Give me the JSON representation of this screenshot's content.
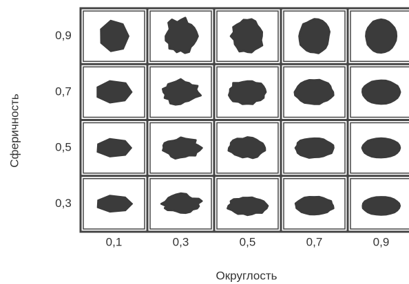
{
  "y_axis": {
    "label": "Сферичность",
    "ticks": [
      "0,9",
      "0,7",
      "0,5",
      "0,3"
    ]
  },
  "x_axis": {
    "label": "Округлость",
    "ticks": [
      "0,1",
      "0,3",
      "0,5",
      "0,7",
      "0,9"
    ]
  }
}
